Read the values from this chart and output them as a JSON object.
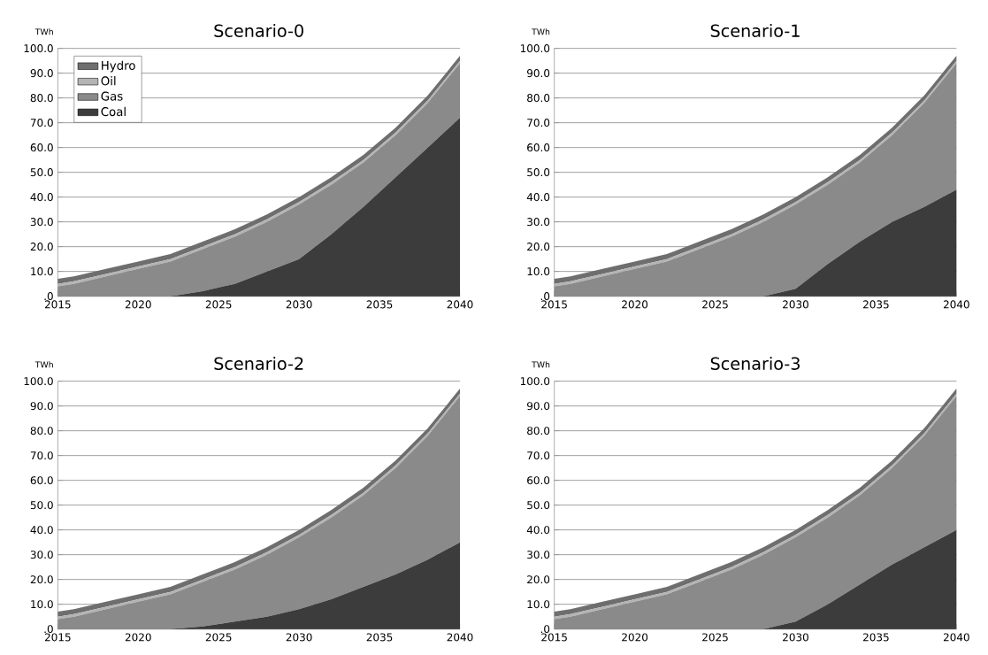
{
  "chart_data": [
    {
      "type": "area",
      "stacked": true,
      "title": "Scenario-0",
      "ylabel": "TWh",
      "grid": "y",
      "legend": "top left",
      "x": [
        2015,
        2016,
        2018,
        2020,
        2022,
        2024,
        2026,
        2028,
        2030,
        2032,
        2034,
        2036,
        2038,
        2040
      ],
      "xlim": [
        2015,
        2040
      ],
      "xticks": [
        2015,
        2020,
        2025,
        2030,
        2035,
        2040
      ],
      "ylim": [
        0,
        100
      ],
      "yticks": [
        {
          "value": 0,
          "label": ".0"
        },
        {
          "value": 10,
          "label": "10.0"
        },
        {
          "value": 20,
          "label": "20.0"
        },
        {
          "value": 30,
          "label": "30.0"
        },
        {
          "value": 40,
          "label": "40.0"
        },
        {
          "value": 50,
          "label": "50.0"
        },
        {
          "value": 60,
          "label": "60.0"
        },
        {
          "value": 70,
          "label": "70.0"
        },
        {
          "value": 80,
          "label": "80.0"
        },
        {
          "value": 90,
          "label": "90.0"
        },
        {
          "value": 100,
          "label": "100.0"
        }
      ],
      "series": [
        {
          "name": "Coal",
          "color": "#3c3c3c",
          "values": [
            0,
            0,
            0,
            0,
            0,
            2,
            5,
            10,
            15,
            25,
            36,
            48,
            60,
            72
          ]
        },
        {
          "name": "Gas",
          "color": "#8a8a8a",
          "values": [
            4,
            5,
            8,
            11,
            14,
            17,
            19,
            20,
            22,
            20,
            18,
            17,
            18,
            22
          ]
        },
        {
          "name": "Oil",
          "color": "#b4b4b4",
          "values": [
            1,
            1,
            1,
            1,
            1,
            1,
            1,
            1,
            1,
            1,
            1,
            1,
            1,
            1
          ]
        },
        {
          "name": "Hydro",
          "color": "#6e6e6e",
          "values": [
            2,
            2,
            2,
            2,
            2,
            2,
            2,
            2,
            2,
            2,
            2,
            2,
            2,
            2
          ]
        }
      ]
    },
    {
      "type": "area",
      "stacked": true,
      "title": "Scenario-1",
      "ylabel": "TWh",
      "grid": "y",
      "x": [
        2015,
        2016,
        2018,
        2020,
        2022,
        2024,
        2026,
        2028,
        2030,
        2032,
        2034,
        2036,
        2038,
        2040
      ],
      "xlim": [
        2015,
        2040
      ],
      "xticks": [
        2015,
        2020,
        2025,
        2030,
        2035,
        2040
      ],
      "ylim": [
        0,
        100
      ],
      "yticks": [
        {
          "value": 0,
          "label": ".0"
        },
        {
          "value": 10,
          "label": "10.0"
        },
        {
          "value": 20,
          "label": "20.0"
        },
        {
          "value": 30,
          "label": "30.0"
        },
        {
          "value": 40,
          "label": "40.0"
        },
        {
          "value": 50,
          "label": "50.0"
        },
        {
          "value": 60,
          "label": "60.0"
        },
        {
          "value": 70,
          "label": "70.0"
        },
        {
          "value": 80,
          "label": "80.0"
        },
        {
          "value": 90,
          "label": "90.0"
        },
        {
          "value": 100,
          "label": "100.0"
        }
      ],
      "series": [
        {
          "color": "#3c3c3c",
          "values": [
            0,
            0,
            0,
            0,
            0,
            0,
            0,
            0,
            3,
            13,
            22,
            30,
            36,
            43
          ]
        },
        {
          "color": "#8a8a8a",
          "values": [
            4,
            5,
            8,
            11,
            14,
            19,
            24,
            30,
            34,
            32,
            32,
            35,
            42,
            51
          ]
        },
        {
          "color": "#b4b4b4",
          "values": [
            1,
            1,
            1,
            1,
            1,
            1,
            1,
            1,
            1,
            1,
            1,
            1,
            1,
            1
          ]
        },
        {
          "color": "#6e6e6e",
          "values": [
            2,
            2,
            2,
            2,
            2,
            2,
            2,
            2,
            2,
            2,
            2,
            2,
            2,
            2
          ]
        }
      ]
    },
    {
      "type": "area",
      "stacked": true,
      "title": "Scenario-2",
      "ylabel": "TWh",
      "grid": "y",
      "x": [
        2015,
        2016,
        2018,
        2020,
        2022,
        2024,
        2026,
        2028,
        2030,
        2032,
        2034,
        2036,
        2038,
        2040
      ],
      "xlim": [
        2015,
        2040
      ],
      "xticks": [
        2015,
        2020,
        2025,
        2030,
        2035,
        2040
      ],
      "ylim": [
        0,
        100
      ],
      "yticks": [
        {
          "value": 0,
          "label": ".0"
        },
        {
          "value": 10,
          "label": "10.0"
        },
        {
          "value": 20,
          "label": "20.0"
        },
        {
          "value": 30,
          "label": "30.0"
        },
        {
          "value": 40,
          "label": "40.0"
        },
        {
          "value": 50,
          "label": "50.0"
        },
        {
          "value": 60,
          "label": "60.0"
        },
        {
          "value": 70,
          "label": "70.0"
        },
        {
          "value": 80,
          "label": "80.0"
        },
        {
          "value": 90,
          "label": "90.0"
        },
        {
          "value": 100,
          "label": "100.0"
        }
      ],
      "series": [
        {
          "color": "#3c3c3c",
          "values": [
            0,
            0,
            0,
            0,
            0,
            1,
            3,
            5,
            8,
            12,
            17,
            22,
            28,
            35
          ]
        },
        {
          "color": "#8a8a8a",
          "values": [
            4,
            5,
            8,
            11,
            14,
            18,
            21,
            25,
            29,
            33,
            37,
            43,
            50,
            59
          ]
        },
        {
          "color": "#b4b4b4",
          "values": [
            1,
            1,
            1,
            1,
            1,
            1,
            1,
            1,
            1,
            1,
            1,
            1,
            1,
            1
          ]
        },
        {
          "color": "#6e6e6e",
          "values": [
            2,
            2,
            2,
            2,
            2,
            2,
            2,
            2,
            2,
            2,
            2,
            2,
            2,
            2
          ]
        }
      ]
    },
    {
      "type": "area",
      "stacked": true,
      "title": "Scenario-3",
      "ylabel": "TWh",
      "grid": "y",
      "x": [
        2015,
        2016,
        2018,
        2020,
        2022,
        2024,
        2026,
        2028,
        2030,
        2032,
        2034,
        2036,
        2038,
        2040
      ],
      "xlim": [
        2015,
        2040
      ],
      "xticks": [
        2015,
        2020,
        2025,
        2030,
        2035,
        2040
      ],
      "ylim": [
        0,
        100
      ],
      "yticks": [
        {
          "value": 0,
          "label": ".0"
        },
        {
          "value": 10,
          "label": "10.0"
        },
        {
          "value": 20,
          "label": "20.0"
        },
        {
          "value": 30,
          "label": "30.0"
        },
        {
          "value": 40,
          "label": "40.0"
        },
        {
          "value": 50,
          "label": "50.0"
        },
        {
          "value": 60,
          "label": "60.0"
        },
        {
          "value": 70,
          "label": "70.0"
        },
        {
          "value": 80,
          "label": "80.0"
        },
        {
          "value": 90,
          "label": "90.0"
        },
        {
          "value": 100,
          "label": "100.0"
        }
      ],
      "series": [
        {
          "color": "#3c3c3c",
          "values": [
            0,
            0,
            0,
            0,
            0,
            0,
            0,
            0,
            3,
            10,
            18,
            26,
            33,
            40
          ]
        },
        {
          "color": "#8a8a8a",
          "values": [
            4,
            5,
            8,
            11,
            14,
            19,
            24,
            30,
            34,
            35,
            36,
            39,
            45,
            54
          ]
        },
        {
          "color": "#b4b4b4",
          "values": [
            1,
            1,
            1,
            1,
            1,
            1,
            1,
            1,
            1,
            1,
            1,
            1,
            1,
            1
          ]
        },
        {
          "color": "#6e6e6e",
          "values": [
            2,
            2,
            2,
            2,
            2,
            2,
            2,
            2,
            2,
            2,
            2,
            2,
            2,
            2
          ]
        }
      ]
    }
  ]
}
